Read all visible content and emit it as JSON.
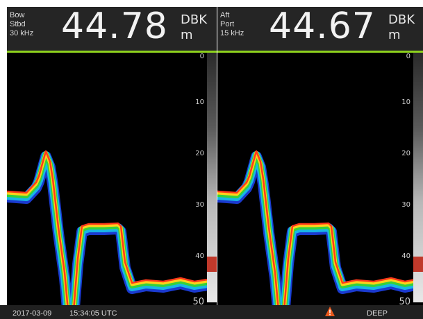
{
  "left": {
    "source_line1": "Bow",
    "source_line2": "Stbd",
    "frequency": "30 kHz",
    "depth": "44.78",
    "reference": "DBK",
    "unit": "m"
  },
  "right": {
    "source_line1": "Aft",
    "source_line2": "Port",
    "frequency": "15 kHz",
    "depth": "44.67",
    "reference": "DBK",
    "unit": "m"
  },
  "scale_ticks": [
    "0",
    "10",
    "20",
    "30",
    "40",
    "50"
  ],
  "status_bar": {
    "date": "2017-03-09",
    "time": "15:34:05 UTC",
    "mode": "DEEP"
  },
  "colors": {
    "accent": "#8ed21d",
    "header_bg": "#252525",
    "alert": "#c0392b"
  },
  "icons": {
    "warning": "warning-triangle-icon"
  }
}
